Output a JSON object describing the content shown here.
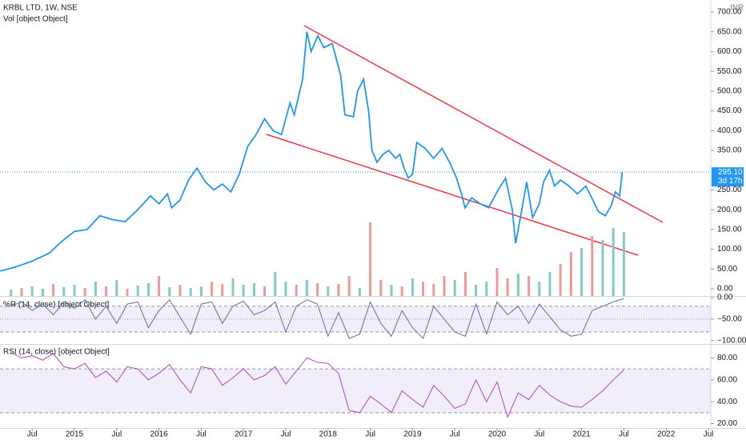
{
  "chart_data": [
    {
      "type": "line",
      "title": "KRBL LTD, 1W, NSE",
      "currency": "INR",
      "last_label": "295.10",
      "countdown": "3d 17h",
      "color": "#2196f3",
      "x": [
        2014.12,
        2014.3,
        2014.5,
        2014.7,
        2014.85,
        2015.0,
        2015.15,
        2015.3,
        2015.45,
        2015.6,
        2015.75,
        2015.9,
        2016.0,
        2016.1,
        2016.15,
        2016.25,
        2016.35,
        2016.45,
        2016.55,
        2016.65,
        2016.75,
        2016.85,
        2016.95,
        2017.05,
        2017.15,
        2017.25,
        2017.35,
        2017.45,
        2017.55,
        2017.6,
        2017.7,
        2017.75,
        2017.8,
        2017.88,
        2017.95,
        2018.05,
        2018.15,
        2018.2,
        2018.3,
        2018.35,
        2018.42,
        2018.48,
        2018.52,
        2018.58,
        2018.65,
        2018.72,
        2018.8,
        2018.85,
        2018.9,
        2018.95,
        2019.0,
        2019.05,
        2019.15,
        2019.25,
        2019.35,
        2019.45,
        2019.52,
        2019.58,
        2019.62,
        2019.7,
        2019.8,
        2019.9,
        2020.0,
        2020.1,
        2020.18,
        2020.22,
        2020.28,
        2020.35,
        2020.42,
        2020.5,
        2020.55,
        2020.62,
        2020.68,
        2020.75,
        2020.85,
        2020.95,
        2021.05,
        2021.12,
        2021.2,
        2021.28,
        2021.35,
        2021.4,
        2021.45,
        2021.48
      ],
      "values": [
        45,
        55,
        70,
        90,
        120,
        145,
        150,
        185,
        175,
        170,
        200,
        235,
        215,
        240,
        205,
        225,
        275,
        305,
        270,
        250,
        265,
        245,
        290,
        360,
        390,
        430,
        400,
        390,
        470,
        440,
        530,
        650,
        600,
        640,
        610,
        620,
        540,
        440,
        435,
        500,
        530,
        450,
        350,
        320,
        340,
        350,
        330,
        340,
        305,
        280,
        290,
        370,
        355,
        330,
        355,
        315,
        280,
        240,
        205,
        230,
        215,
        205,
        245,
        280,
        200,
        115,
        185,
        270,
        180,
        215,
        270,
        300,
        260,
        275,
        260,
        240,
        260,
        230,
        195,
        185,
        210,
        245,
        235,
        295.1
      ],
      "ylim": [
        0,
        730
      ],
      "yticks": [
        {
          "value": 0,
          "label": "0.00"
        },
        {
          "value": 50,
          "label": "50.00"
        },
        {
          "value": 100,
          "label": "100.00"
        },
        {
          "value": 150,
          "label": "150.00"
        },
        {
          "value": 200,
          "label": "200.00"
        },
        {
          "value": 250,
          "label": "250.00"
        },
        {
          "value": 350,
          "label": "350.00"
        },
        {
          "value": 400,
          "label": "400.00"
        },
        {
          "value": 450,
          "label": "450.00"
        },
        {
          "value": 500,
          "label": "500.00"
        },
        {
          "value": 550,
          "label": "550.00"
        },
        {
          "value": 600,
          "label": "600.00"
        },
        {
          "value": 650,
          "label": "650.00"
        },
        {
          "value": 700,
          "label": "700.00"
        }
      ]
    },
    {
      "type": "bar",
      "title": "Vol [object Object]",
      "x": [
        2014.25,
        2014.375,
        2014.5,
        2014.625,
        2014.75,
        2014.875,
        2015,
        2015.125,
        2015.25,
        2015.375,
        2015.5,
        2015.625,
        2015.75,
        2015.875,
        2016,
        2016.125,
        2016.25,
        2016.375,
        2016.5,
        2016.625,
        2016.75,
        2016.875,
        2017,
        2017.125,
        2017.25,
        2017.375,
        2017.5,
        2017.625,
        2017.75,
        2017.875,
        2018,
        2018.125,
        2018.25,
        2018.375,
        2018.5,
        2018.625,
        2018.75,
        2018.875,
        2019,
        2019.125,
        2019.25,
        2019.375,
        2019.5,
        2019.625,
        2019.75,
        2019.875,
        2020,
        2020.125,
        2020.25,
        2020.375,
        2020.5,
        2020.625,
        2020.75,
        2020.875,
        2021,
        2021.125,
        2021.25,
        2021.375,
        2021.5
      ],
      "values": [
        8,
        10,
        12,
        9,
        15,
        11,
        14,
        10,
        18,
        12,
        20,
        9,
        13,
        16,
        25,
        11,
        14,
        10,
        12,
        18,
        15,
        22,
        14,
        16,
        12,
        30,
        18,
        14,
        20,
        16,
        12,
        15,
        25,
        10,
        92,
        20,
        14,
        12,
        22,
        18,
        15,
        25,
        20,
        30,
        14,
        18,
        35,
        22,
        28,
        25,
        18,
        30,
        40,
        55,
        60,
        75,
        70,
        85,
        80
      ],
      "colors": [
        "#80cbc4",
        "#ef9a9a",
        "#80cbc4",
        "#80cbc4",
        "#ef9a9a",
        "#80cbc4",
        "#80cbc4",
        "#ef9a9a",
        "#80cbc4",
        "#ef9a9a",
        "#80cbc4",
        "#ef9a9a",
        "#80cbc4",
        "#80cbc4",
        "#ef9a9a",
        "#80cbc4",
        "#ef9a9a",
        "#80cbc4",
        "#80cbc4",
        "#ef9a9a",
        "#ef9a9a",
        "#80cbc4",
        "#80cbc4",
        "#80cbc4",
        "#ef9a9a",
        "#80cbc4",
        "#80cbc4",
        "#ef9a9a",
        "#80cbc4",
        "#ef9a9a",
        "#80cbc4",
        "#ef9a9a",
        "#ef9a9a",
        "#80cbc4",
        "#ef9a9a",
        "#ef9a9a",
        "#80cbc4",
        "#ef9a9a",
        "#80cbc4",
        "#ef9a9a",
        "#ef9a9a",
        "#ef9a9a",
        "#80cbc4",
        "#ef9a9a",
        "#80cbc4",
        "#80cbc4",
        "#ef9a9a",
        "#ef9a9a",
        "#80cbc4",
        "#ef9a9a",
        "#80cbc4",
        "#80cbc4",
        "#ef9a9a",
        "#ef9a9a",
        "#80cbc4",
        "#ef9a9a",
        "#80cbc4",
        "#80cbc4",
        "#80cbc4"
      ],
      "ylim": [
        0,
        100
      ]
    },
    {
      "type": "line",
      "title": "%R (14, close) [object Object]",
      "color": "#5c6fa6",
      "bands": [
        -20,
        -80
      ],
      "midline": -50,
      "x": [
        2014.25,
        2014.375,
        2014.5,
        2014.625,
        2014.75,
        2014.875,
        2015,
        2015.125,
        2015.25,
        2015.375,
        2015.5,
        2015.625,
        2015.75,
        2015.875,
        2016,
        2016.125,
        2016.25,
        2016.375,
        2016.5,
        2016.625,
        2016.75,
        2016.875,
        2017,
        2017.125,
        2017.25,
        2017.375,
        2017.5,
        2017.625,
        2017.75,
        2017.875,
        2018,
        2018.125,
        2018.25,
        2018.375,
        2018.5,
        2018.625,
        2018.75,
        2018.875,
        2019,
        2019.125,
        2019.25,
        2019.375,
        2019.5,
        2019.625,
        2019.75,
        2019.875,
        2020,
        2020.125,
        2020.25,
        2020.375,
        2020.5,
        2020.625,
        2020.75,
        2020.875,
        2021,
        2021.125,
        2021.25,
        2021.375,
        2021.5
      ],
      "values": [
        -20,
        -10,
        -30,
        -15,
        -40,
        -10,
        -25,
        -5,
        -50,
        -20,
        -60,
        -15,
        -10,
        -70,
        -30,
        -5,
        -45,
        -85,
        -15,
        -10,
        -60,
        -20,
        -8,
        -40,
        -30,
        -10,
        -80,
        -20,
        -5,
        -15,
        -90,
        -35,
        -95,
        -85,
        -10,
        -60,
        -90,
        -30,
        -70,
        -95,
        -20,
        -50,
        -80,
        -90,
        -15,
        -85,
        -10,
        -40,
        -20,
        -60,
        -15,
        -45,
        -75,
        -90,
        -85,
        -30,
        -20,
        -10,
        -2
      ],
      "ylim": [
        -108,
        2
      ],
      "yticks": [
        {
          "value": 0,
          "label": "0.00"
        },
        {
          "value": -50,
          "label": "−50.00"
        },
        {
          "value": -100,
          "label": "−100.00"
        }
      ]
    },
    {
      "type": "line",
      "title": "RSI (14, close) [object Object]",
      "color": "#ab47bc",
      "bands": [
        70,
        30
      ],
      "x": [
        2014.25,
        2014.375,
        2014.5,
        2014.625,
        2014.75,
        2014.875,
        2015,
        2015.125,
        2015.25,
        2015.375,
        2015.5,
        2015.625,
        2015.75,
        2015.875,
        2016,
        2016.125,
        2016.25,
        2016.375,
        2016.5,
        2016.625,
        2016.75,
        2016.875,
        2017,
        2017.125,
        2017.25,
        2017.375,
        2017.5,
        2017.625,
        2017.75,
        2017.875,
        2018,
        2018.125,
        2018.25,
        2018.375,
        2018.5,
        2018.625,
        2018.75,
        2018.875,
        2019,
        2019.125,
        2019.25,
        2019.375,
        2019.5,
        2019.625,
        2019.75,
        2019.875,
        2020,
        2020.125,
        2020.25,
        2020.375,
        2020.5,
        2020.625,
        2020.75,
        2020.875,
        2021,
        2021.125,
        2021.25,
        2021.375,
        2021.5
      ],
      "values": [
        85,
        80,
        82,
        78,
        84,
        72,
        70,
        75,
        62,
        68,
        58,
        72,
        70,
        60,
        66,
        74,
        60,
        48,
        72,
        70,
        55,
        62,
        70,
        60,
        64,
        72,
        56,
        68,
        80,
        76,
        75,
        66,
        32,
        30,
        45,
        38,
        30,
        50,
        42,
        35,
        55,
        45,
        34,
        38,
        60,
        40,
        58,
        26,
        48,
        42,
        55,
        46,
        40,
        36,
        35,
        42,
        50,
        60,
        69
      ],
      "ylim": [
        16,
        92
      ],
      "yticks": [
        {
          "value": 20,
          "label": "20.00"
        },
        {
          "value": 40,
          "label": "40.00"
        },
        {
          "value": 60,
          "label": "60.00"
        },
        {
          "value": 80,
          "label": "80.00"
        }
      ],
      "xlim": [
        2014.12,
        2022.75
      ],
      "xticks": [
        {
          "value": 2014.5,
          "label": "Jul"
        },
        2015,
        {
          "value": 2015.5,
          "label": "Jul"
        },
        2016,
        {
          "value": 2016.5,
          "label": "Jul"
        },
        2017,
        {
          "value": 2017.5,
          "label": "Jul"
        },
        2018,
        {
          "value": 2018.5,
          "label": "Jul"
        },
        2019,
        {
          "value": 2019.5,
          "label": "Jul"
        },
        2020,
        {
          "value": 2020.5,
          "label": "Jul"
        },
        2021,
        {
          "value": 2021.5,
          "label": "Jul"
        },
        2022,
        {
          "value": 2022.5,
          "label": "Jul"
        }
      ]
    }
  ]
}
